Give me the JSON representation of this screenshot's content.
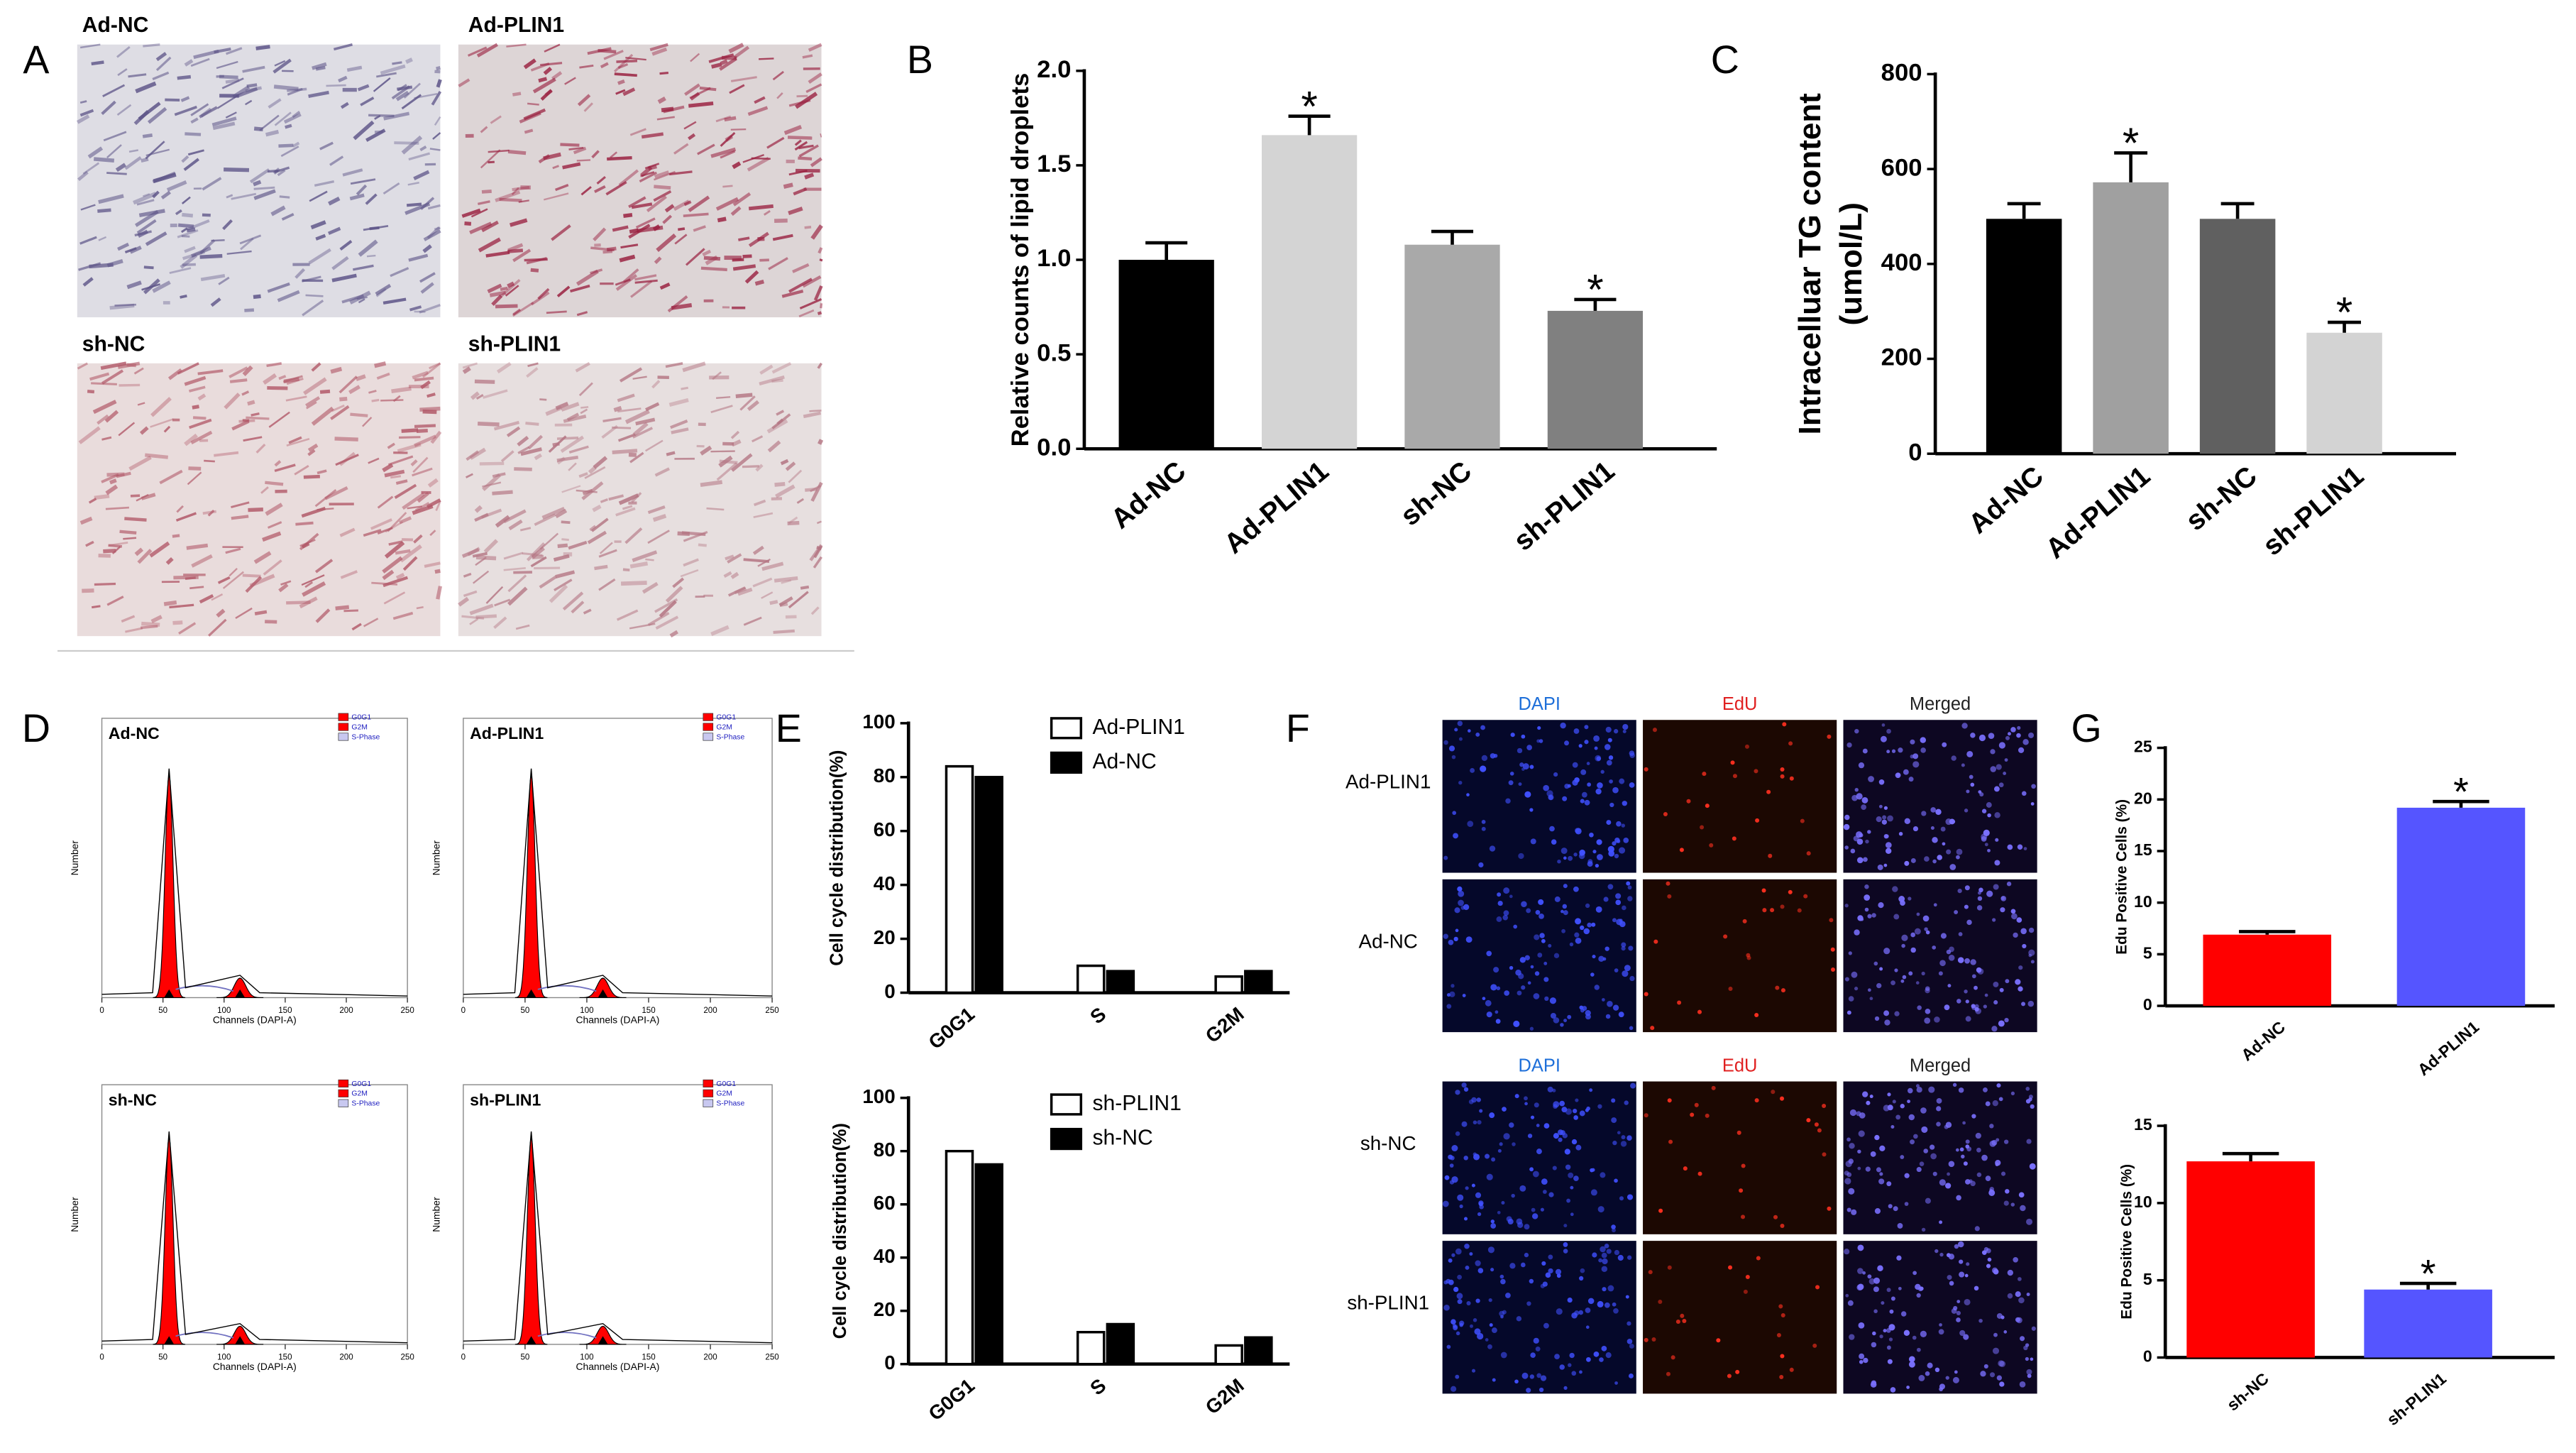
{
  "figure": {
    "panel_letters": [
      "A",
      "D",
      "F"
    ],
    "micrographs": [
      "Ad-NC",
      "Ad-PLIN1",
      "sh-NC",
      "sh-PLIN1"
    ],
    "edu_images": {
      "headers": [
        "DAPI",
        "EdU",
        "Merged"
      ],
      "header_colors": [
        "#1e6fd9",
        "#e02020",
        "#222222"
      ],
      "rows": [
        "Ad-PLIN1",
        "Ad-NC",
        "sh-NC",
        "sh-PLIN1"
      ]
    }
  },
  "chart_data": [
    {
      "type": "bar",
      "panel": "B",
      "y_label": "Relative counts of lipid droplets",
      "categories": [
        "Ad-NC",
        "Ad-PLIN1",
        "sh-NC",
        "sh-PLIN1"
      ],
      "values": [
        1.0,
        1.66,
        1.08,
        0.73
      ],
      "errors": [
        0.09,
        0.1,
        0.07,
        0.06
      ],
      "colors": [
        "#000000",
        "#d4d4d4",
        "#a9a9a9",
        "#808080"
      ],
      "annotations": [
        null,
        "*",
        null,
        "*"
      ],
      "ylim": [
        0,
        2
      ],
      "yticks": [
        {
          "value": 0,
          "label": "0.0"
        },
        0.5,
        {
          "value": 1,
          "label": "1.0"
        },
        1.5,
        {
          "value": 2,
          "label": "2.0"
        }
      ]
    },
    {
      "type": "bar",
      "panel": "C",
      "y_label": [
        "Intracelluar TG content",
        "(umol/L)"
      ],
      "categories": [
        "Ad-NC",
        "Ad-PLIN1",
        "sh-NC",
        "sh-PLIN1"
      ],
      "values": [
        495,
        572,
        495,
        255
      ],
      "errors": [
        32,
        62,
        32,
        22
      ],
      "colors": [
        "#000000",
        "#a0a0a0",
        "#606060",
        "#d3d3d3"
      ],
      "annotations": [
        null,
        "*",
        null,
        "*"
      ],
      "ylim": [
        0,
        800
      ],
      "yticks": [
        0,
        200,
        400,
        600,
        800
      ]
    },
    {
      "type": "flow",
      "title": "Ad-NC",
      "x_label": "Channels (DAPI-A)",
      "y_label": "Number",
      "legend": [
        "G0G1",
        "G2M",
        "S-Phase"
      ],
      "legend_colors": [
        "#ff0000",
        "#ff0000",
        "#c8c8f0"
      ],
      "markers_x": [
        55,
        113
      ],
      "xlim": [
        0,
        250
      ],
      "xticks": [
        0,
        50,
        100,
        150,
        200,
        250
      ]
    },
    {
      "type": "flow",
      "title": "Ad-PLIN1",
      "x_label": "Channels (DAPI-A)",
      "y_label": "Number",
      "legend": [
        "G0G1",
        "G2M",
        "S-Phase"
      ],
      "legend_colors": [
        "#ff0000",
        "#ff0000",
        "#c8c8f0"
      ],
      "markers_x": [
        55,
        113
      ],
      "xlim": [
        0,
        250
      ],
      "xticks": [
        0,
        50,
        100,
        150,
        200,
        250
      ]
    },
    {
      "type": "flow",
      "title": "sh-NC",
      "x_label": "Channels (DAPI-A)",
      "y_label": "Number",
      "legend": [
        "G0G1",
        "G2M",
        "S-Phase"
      ],
      "legend_colors": [
        "#ff0000",
        "#ff0000",
        "#c8c8f0"
      ],
      "markers_x": [
        55,
        113
      ],
      "xlim": [
        0,
        250
      ],
      "xticks": [
        0,
        50,
        100,
        150,
        200,
        250
      ]
    },
    {
      "type": "flow",
      "title": "sh-PLIN1",
      "x_label": "Channels (DAPI-A)",
      "y_label": "Number",
      "legend": [
        "G0G1",
        "G2M",
        "S-Phase"
      ],
      "legend_colors": [
        "#ff0000",
        "#ff0000",
        "#c8c8f0"
      ],
      "markers_x": [
        55,
        113
      ],
      "xlim": [
        0,
        250
      ],
      "xticks": [
        0,
        50,
        100,
        150,
        200,
        250
      ]
    },
    {
      "type": "grouped_bar",
      "panel": "E",
      "y_label": "Cell cycle distribution(%)",
      "categories": [
        "G0G1",
        "S",
        "G2M"
      ],
      "series": [
        {
          "name": "Ad-PLIN1",
          "color": "#ffffff",
          "values": [
            84,
            10,
            6
          ]
        },
        {
          "name": "Ad-NC",
          "color": "#000000",
          "values": [
            80,
            8,
            8
          ]
        }
      ],
      "ylim": [
        0,
        100
      ],
      "yticks": [
        0,
        20,
        40,
        60,
        80,
        100
      ]
    },
    {
      "type": "grouped_bar",
      "y_label": "Cell cycle distribution(%)",
      "categories": [
        "G0G1",
        "S",
        "G2M"
      ],
      "series": [
        {
          "name": "sh-PLIN1",
          "color": "#ffffff",
          "values": [
            80,
            12,
            7
          ]
        },
        {
          "name": "sh-NC",
          "color": "#000000",
          "values": [
            75,
            15,
            10
          ]
        }
      ],
      "ylim": [
        0,
        100
      ],
      "yticks": [
        0,
        20,
        40,
        60,
        80,
        100
      ]
    },
    {
      "type": "bar",
      "panel": "G",
      "y_label": "Edu Positive Cells (%)",
      "categories": [
        "Ad-NC",
        "Ad-PLIN1"
      ],
      "values": [
        6.9,
        19.2
      ],
      "errors": [
        0.3,
        0.6
      ],
      "colors": [
        "#ff0000",
        "#5555ff"
      ],
      "annotations": [
        null,
        "*"
      ],
      "ylim": [
        0,
        25
      ],
      "yticks": [
        0,
        5,
        10,
        15,
        20,
        25
      ]
    },
    {
      "type": "bar",
      "y_label": "Edu Positive Cells (%)",
      "categories": [
        "sh-NC",
        "sh-PLIN1"
      ],
      "values": [
        12.7,
        4.4
      ],
      "errors": [
        0.5,
        0.4
      ],
      "colors": [
        "#ff0000",
        "#5555ff"
      ],
      "annotations": [
        null,
        "*"
      ],
      "ylim": [
        0,
        15
      ],
      "yticks": [
        0,
        5,
        10,
        15
      ]
    }
  ]
}
